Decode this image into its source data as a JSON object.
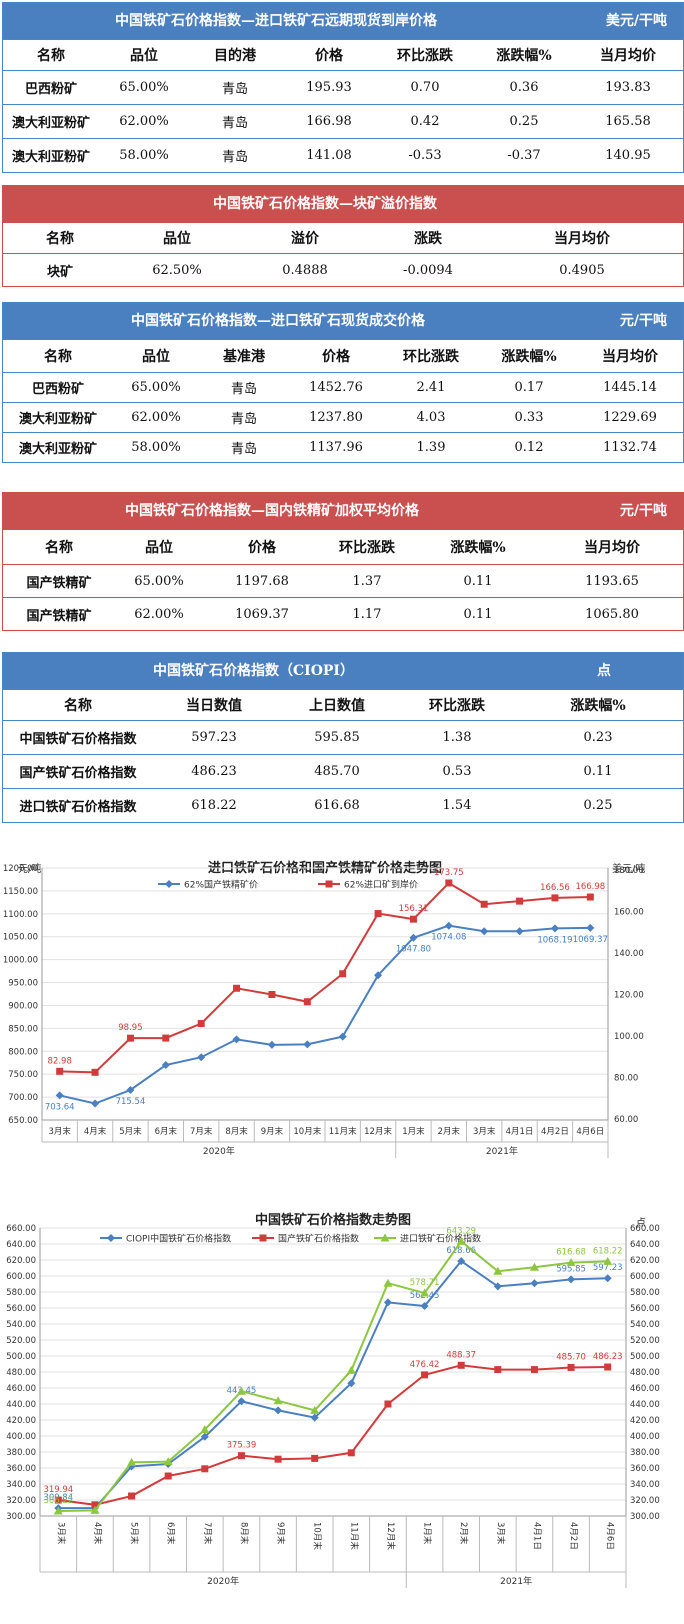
{
  "table1": {
    "title": "中国铁矿石价格指数—进口铁矿石远期现货到岸价格",
    "unit": "美元/干吨",
    "columns": [
      "名称",
      "品位",
      "目的港",
      "价格",
      "环比涨跌",
      "涨跌幅%",
      "当月均价"
    ],
    "rows": [
      [
        "巴西粉矿",
        "65.00%",
        "青岛",
        "195.93",
        "0.70",
        "0.36",
        "193.83"
      ],
      [
        "澳大利亚粉矿",
        "62.00%",
        "青岛",
        "166.98",
        "0.42",
        "0.25",
        "165.58"
      ],
      [
        "澳大利亚粉矿",
        "58.00%",
        "青岛",
        "141.08",
        "-0.53",
        "-0.37",
        "140.95"
      ]
    ]
  },
  "table2": {
    "title": "中国铁矿石价格指数—块矿溢价指数",
    "columns": [
      "名称",
      "品位",
      "溢价",
      "涨跌",
      "当月均价"
    ],
    "rows": [
      [
        "块矿",
        "62.50%",
        "0.4888",
        "-0.0094",
        "0.4905"
      ]
    ]
  },
  "table3": {
    "title": "中国铁矿石价格指数—进口铁矿石现货成交价格",
    "unit": "元/干吨",
    "columns": [
      "名称",
      "品位",
      "基准港",
      "价格",
      "环比涨跌",
      "涨跌幅%",
      "当月均价"
    ],
    "rows": [
      [
        "巴西粉矿",
        "65.00%",
        "青岛",
        "1452.76",
        "2.41",
        "0.17",
        "1445.14"
      ],
      [
        "澳大利亚粉矿",
        "62.00%",
        "青岛",
        "1237.80",
        "4.03",
        "0.33",
        "1229.69"
      ],
      [
        "澳大利亚粉矿",
        "58.00%",
        "青岛",
        "1137.96",
        "1.39",
        "0.12",
        "1132.74"
      ]
    ]
  },
  "table4": {
    "title": "中国铁矿石价格指数—国内铁精矿加权平均价格",
    "unit": "元/干吨",
    "columns": [
      "名称",
      "品位",
      "价格",
      "环比涨跌",
      "涨跌幅%",
      "当月均价"
    ],
    "rows": [
      [
        "国产铁精矿",
        "65.00%",
        "1197.68",
        "1.37",
        "0.11",
        "1193.65"
      ],
      [
        "国产铁精矿",
        "62.00%",
        "1069.37",
        "1.17",
        "0.11",
        "1065.80"
      ]
    ]
  },
  "table5": {
    "title": "中国铁矿石价格指数（CIOPI）",
    "unit": "点",
    "columns": [
      "名称",
      "当日数值",
      "上日数值",
      "环比涨跌",
      "涨跌幅%"
    ],
    "rows": [
      [
        "中国铁矿石价格指数",
        "597.23",
        "595.85",
        "1.38",
        "0.23"
      ],
      [
        "国产铁矿石价格指数",
        "486.23",
        "485.70",
        "0.53",
        "0.11"
      ],
      [
        "进口铁矿石价格指数",
        "618.22",
        "616.68",
        "1.54",
        "0.25"
      ]
    ]
  },
  "chart_data": [
    {
      "type": "line",
      "title": "进口铁矿石价格和国产铁精矿价格走势图",
      "ylabel_left": "元/吨",
      "ylabel_right": "美元/吨",
      "ylim_left": [
        650,
        1200
      ],
      "ylim_right": [
        60,
        180
      ],
      "yticks_left": [
        "650.00",
        "700.00",
        "750.00",
        "800.00",
        "850.00",
        "900.00",
        "950.00",
        "1000.00",
        "1050.00",
        "1100.00",
        "1150.00",
        "1200.00"
      ],
      "yticks_right": [
        "60.00",
        "80.00",
        "100.00",
        "120.00",
        "140.00",
        "160.00",
        "180.00"
      ],
      "categories": [
        "3月末",
        "4月末",
        "5月末",
        "6月末",
        "7月末",
        "8月末",
        "9月末",
        "10月末",
        "11月末",
        "12月末",
        "1月末",
        "2月末",
        "3月末",
        "4月1日",
        "4月2日",
        "4月6日"
      ],
      "year_groups": [
        {
          "label": "2020年",
          "start": 0,
          "end": 9
        },
        {
          "label": "2021年",
          "start": 10,
          "end": 15
        }
      ],
      "legend_position": "top",
      "series": [
        {
          "name": "62%国产铁精矿价",
          "axis": "left",
          "color": "#4a7fc0",
          "values": [
            703.64,
            686,
            715.54,
            770,
            787,
            826,
            814,
            815,
            832,
            966,
            1047.8,
            1074.08,
            1062,
            1062,
            1068.19,
            1069.37
          ],
          "labels": {
            "0": "703.64",
            "2": "715.54",
            "10": "1047.80",
            "11": "1074.08",
            "14": "1068.19",
            "15": "1069.37"
          }
        },
        {
          "name": "62%进口矿到岸价",
          "axis": "right",
          "color": "#d23b3b",
          "values": [
            82.98,
            82.5,
            98.95,
            99,
            106,
            123,
            120,
            116.5,
            130,
            159,
            156.31,
            173.75,
            163.5,
            165,
            166.56,
            166.98
          ],
          "labels": {
            "0": "82.98",
            "2": "98.95",
            "10": "156.31",
            "11": "173.75",
            "14": "166.56",
            "15": "166.98"
          }
        }
      ]
    },
    {
      "type": "line",
      "title": "中国铁矿石价格指数走势图",
      "ylabel_right": "点",
      "ylim": [
        300,
        660
      ],
      "yticks": [
        "300.00",
        "320.00",
        "340.00",
        "360.00",
        "380.00",
        "400.00",
        "420.00",
        "440.00",
        "460.00",
        "480.00",
        "500.00",
        "520.00",
        "540.00",
        "560.00",
        "580.00",
        "600.00",
        "620.00",
        "640.00",
        "660.00"
      ],
      "categories": [
        "3月末",
        "4月末",
        "5月末",
        "6月末",
        "7月末",
        "8月末",
        "9月末",
        "10月末",
        "11月末",
        "12月末",
        "1月末",
        "2月末",
        "3月末",
        "4月1日",
        "4月2日",
        "4月6日"
      ],
      "year_groups": [
        {
          "label": "2020年",
          "start": 0,
          "end": 9
        },
        {
          "label": "2021年",
          "start": 10,
          "end": 15
        }
      ],
      "legend_position": "top",
      "series": [
        {
          "name": "CIOPI中国铁矿石价格指数",
          "color": "#4a7fc0",
          "marker": "diamond",
          "values": [
            309.84,
            310,
            362,
            365,
            399,
            443.45,
            432,
            423,
            466,
            567,
            562.45,
            618.66,
            587,
            591,
            595.85,
            597.23
          ],
          "labels": {
            "0": "309.84",
            "5": "443.45",
            "10": "562.45",
            "11": "618.66",
            "14": "595.85",
            "15": "597.23"
          }
        },
        {
          "name": "国产铁矿石价格指数",
          "color": "#d23b3b",
          "marker": "square",
          "values": [
            319.94,
            314,
            325,
            350,
            359,
            375.39,
            371,
            372,
            379,
            440,
            476.42,
            488.37,
            483,
            483,
            485.7,
            486.23
          ],
          "labels": {
            "0": "319.94",
            "5": "375.39",
            "10": "476.42",
            "11": "488.37",
            "14": "485.70",
            "15": "486.23"
          }
        },
        {
          "name": "进口铁矿石价格指数",
          "color": "#8dc63f",
          "marker": "triangle",
          "values": [
            306.22,
            307,
            367,
            368,
            408,
            456,
            444,
            432,
            482,
            591,
            578.71,
            643.29,
            606,
            611,
            616.68,
            618.22
          ],
          "labels": {
            "0": "306.22",
            "10": "578.71",
            "11": "643.29",
            "14": "616.68",
            "15": "618.22"
          }
        }
      ]
    }
  ]
}
